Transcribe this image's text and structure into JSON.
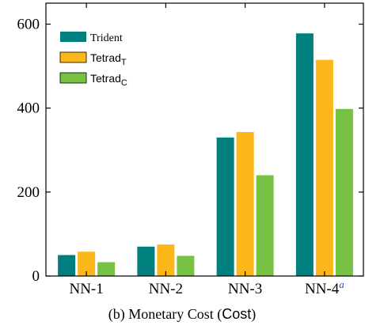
{
  "chart_data": {
    "type": "bar",
    "categories": [
      "NN-1",
      "NN-2",
      "NN-3",
      "NN-4"
    ],
    "category_superscripts": [
      "",
      "",
      "",
      "a"
    ],
    "series": [
      {
        "name": "Trident",
        "name_subscript": "",
        "color": "#007f7f",
        "values": [
          50,
          70,
          330,
          578
        ]
      },
      {
        "name": "Tetrad",
        "name_subscript": "T",
        "color": "#fbb818",
        "values": [
          58,
          75,
          343,
          515
        ]
      },
      {
        "name": "Tetrad",
        "name_subscript": "C",
        "color": "#77c243",
        "values": [
          33,
          48,
          240,
          398
        ]
      }
    ],
    "ylim": [
      0,
      650
    ],
    "yticks": [
      0,
      200,
      400,
      600
    ],
    "ytick_labels": [
      "0",
      "200",
      "400",
      "600"
    ],
    "legend": "top-left",
    "grid": false,
    "caption_parts": {
      "prefix": "(b) Monetary Cost (",
      "mono": "Cost",
      "suffix": ")"
    }
  }
}
